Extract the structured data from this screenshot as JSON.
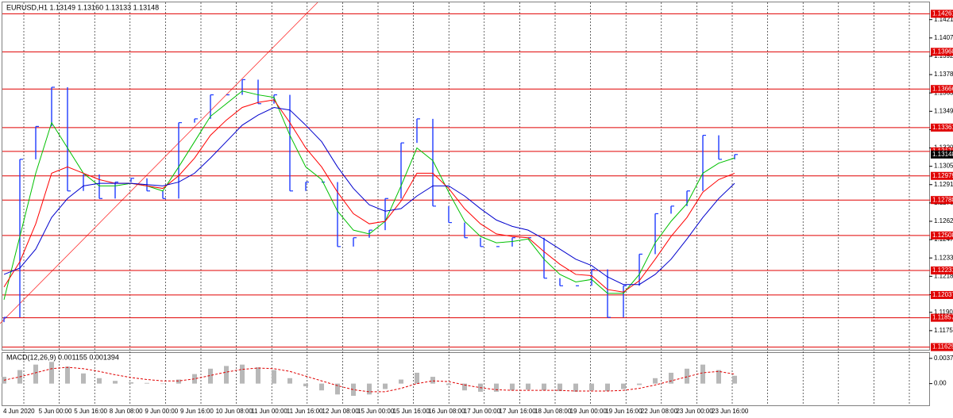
{
  "chart_data": [
    {
      "type": "financial",
      "title": "EURUSD,H1  1.13149 1.13160 1.13133 1.13148",
      "ylim": [
        1.1161,
        1.1437
      ],
      "yticks": [
        1.14215,
        {
          "value": 1.1407,
          "label": "1.14070"
        },
        1.13925,
        {
          "value": 1.1378,
          "label": "1.13780"
        },
        1.13635,
        {
          "value": 1.1349,
          "label": "1.13490"
        },
        1.13345,
        {
          "value": 1.132,
          "label": "1.13200"
        },
        1.13055,
        {
          "value": 1.1291,
          "label": "1.12910"
        },
        1.12765,
        {
          "value": 1.1262,
          "label": "1.12620"
        },
        1.12475,
        {
          "value": 1.1233,
          "label": "1.12330"
        },
        1.12185,
        {
          "value": 1.1204,
          "label": "1.12040"
        },
        {
          "value": 1.119,
          "label": "1.11900"
        },
        1.11755
      ],
      "levels": [
        1.14261,
        {
          "value": 1.1396,
          "label": "1.13960"
        },
        1.13666,
        1.13361,
        1.13173,
        1.12979,
        1.12788,
        1.12508,
        1.12231,
        1.12037,
        1.11857,
        1.11625
      ],
      "level_color": "#e00000",
      "last_price": 1.13148,
      "xticklabels": [
        "4 Jun 2020",
        "5 Jun 00:00",
        "5 Jun 16:00",
        "8 Jun 08:00",
        "9 Jun 00:00",
        "9 Jun 16:00",
        "10 Jun 08:00",
        "11 Jun 00:00",
        "11 Jun 16:00",
        "12 Jun 08:00",
        "15 Jun 00:00",
        "15 Jun 16:00",
        "16 Jun 08:00",
        "17 Jun 00:00",
        "17 Jun 16:00",
        "18 Jun 08:00",
        "19 Jun 00:00",
        "19 Jun 16:00",
        "22 Jun 08:00",
        "23 Jun 00:00",
        "23 Jun 16:00"
      ],
      "series": [
        {
          "kind": "bars",
          "color": "#1e3cff",
          "values": [
            1.1186,
            1.1311,
            1.1337,
            1.1368,
            1.1286,
            1.1299,
            1.128,
            1.1293,
            1.1296,
            1.1286,
            1.128,
            1.134,
            1.1343,
            1.1362,
            1.1362,
            1.1374,
            1.1355,
            1.1362,
            1.1286,
            1.1293,
            1.1293,
            1.1242,
            1.1249,
            1.1255,
            1.128,
            1.1324,
            1.1343,
            1.1274,
            1.1261,
            1.1249,
            1.1242,
            1.1242,
            1.1249,
            1.1249,
            1.1217,
            1.1211,
            1.1211,
            1.1224,
            1.1186,
            1.1211,
            1.1236,
            1.1268,
            1.1274,
            1.1286,
            1.133,
            1.1311,
            1.13148
          ]
        },
        {
          "kind": "line",
          "color": "#00c000",
          "values": [
            1.12,
            1.125,
            1.13,
            1.134,
            1.132,
            1.13,
            1.129,
            1.129,
            1.1292,
            1.129,
            1.1286,
            1.1305,
            1.1325,
            1.1345,
            1.1355,
            1.1365,
            1.1362,
            1.136,
            1.133,
            1.1305,
            1.1295,
            1.127,
            1.1255,
            1.1252,
            1.1262,
            1.129,
            1.132,
            1.131,
            1.1285,
            1.1262,
            1.125,
            1.1245,
            1.1246,
            1.1248,
            1.1232,
            1.122,
            1.1214,
            1.1216,
            1.1205,
            1.1205,
            1.122,
            1.1245,
            1.1262,
            1.1276,
            1.13,
            1.1308,
            1.1312
          ]
        },
        {
          "kind": "line",
          "color": "#ff0000",
          "values": [
            1.121,
            1.123,
            1.126,
            1.13,
            1.1305,
            1.13,
            1.1295,
            1.1292,
            1.1292,
            1.129,
            1.1288,
            1.1298,
            1.1312,
            1.133,
            1.1342,
            1.1352,
            1.1356,
            1.1358,
            1.134,
            1.132,
            1.1305,
            1.1285,
            1.1268,
            1.126,
            1.1262,
            1.1278,
            1.13,
            1.13,
            1.1288,
            1.1272,
            1.126,
            1.1252,
            1.125,
            1.1249,
            1.1238,
            1.1228,
            1.122,
            1.1219,
            1.1208,
            1.1206,
            1.1215,
            1.1232,
            1.125,
            1.1265,
            1.1285,
            1.1295,
            1.13
          ]
        },
        {
          "kind": "line",
          "color": "#0000cd",
          "values": [
            1.122,
            1.1225,
            1.124,
            1.1265,
            1.128,
            1.129,
            1.1292,
            1.1292,
            1.1292,
            1.1291,
            1.129,
            1.1293,
            1.13,
            1.1312,
            1.1325,
            1.1338,
            1.1346,
            1.1352,
            1.135,
            1.1338,
            1.1325,
            1.1305,
            1.1288,
            1.1275,
            1.127,
            1.1272,
            1.1282,
            1.129,
            1.129,
            1.1282,
            1.1272,
            1.1263,
            1.1258,
            1.1255,
            1.1248,
            1.124,
            1.1232,
            1.1227,
            1.1218,
            1.1212,
            1.1212,
            1.122,
            1.1232,
            1.1248,
            1.1265,
            1.128,
            1.1292
          ]
        }
      ]
    },
    {
      "type": "macd",
      "title": "MACD(12,26,9) 0.001155 0.001394",
      "ylim": [
        -0.0032,
        0.0044
      ],
      "yticks": [
        0.003721,
        {
          "value": 0,
          "label": "0.00"
        }
      ],
      "series": [
        {
          "kind": "bars",
          "color": "#b8b8b8",
          "values": [
            0.001,
            0.002,
            0.0028,
            0.0032,
            0.0025,
            0.0015,
            0.0008,
            0.0004,
            0.0002,
            0.0001,
            0,
            0.0006,
            0.0014,
            0.0022,
            0.0026,
            0.0028,
            0.0024,
            0.002,
            0.0008,
            -0.0004,
            -0.001,
            -0.0016,
            -0.0018,
            -0.0016,
            -0.0008,
            0.0006,
            0.0016,
            0.001,
            -0.0002,
            -0.001,
            -0.0012,
            -0.0012,
            -0.001,
            -0.0009,
            -0.001,
            -0.0011,
            -0.0012,
            -0.001,
            -0.0011,
            -0.0008,
            -0.0002,
            0.0008,
            0.0016,
            0.0022,
            0.0028,
            0.002,
            0.001155
          ]
        },
        {
          "kind": "dashed",
          "color": "#e00000",
          "values": [
            0.0005,
            0.001,
            0.0016,
            0.0022,
            0.0024,
            0.0022,
            0.0018,
            0.0013,
            0.0009,
            0.0006,
            0.0004,
            0.0004,
            0.0007,
            0.0012,
            0.0017,
            0.0021,
            0.0023,
            0.0022,
            0.0018,
            0.0011,
            0.0004,
            -0.0003,
            -0.0009,
            -0.0012,
            -0.0012,
            -0.0007,
            0,
            0.0004,
            0.0003,
            -0.0002,
            -0.0006,
            -0.0009,
            -0.001,
            -0.001,
            -0.001,
            -0.001,
            -0.0011,
            -0.0011,
            -0.0011,
            -0.001,
            -0.0007,
            -0.0002,
            0.0004,
            0.001,
            0.0016,
            0.0018,
            0.001394
          ]
        }
      ]
    }
  ]
}
